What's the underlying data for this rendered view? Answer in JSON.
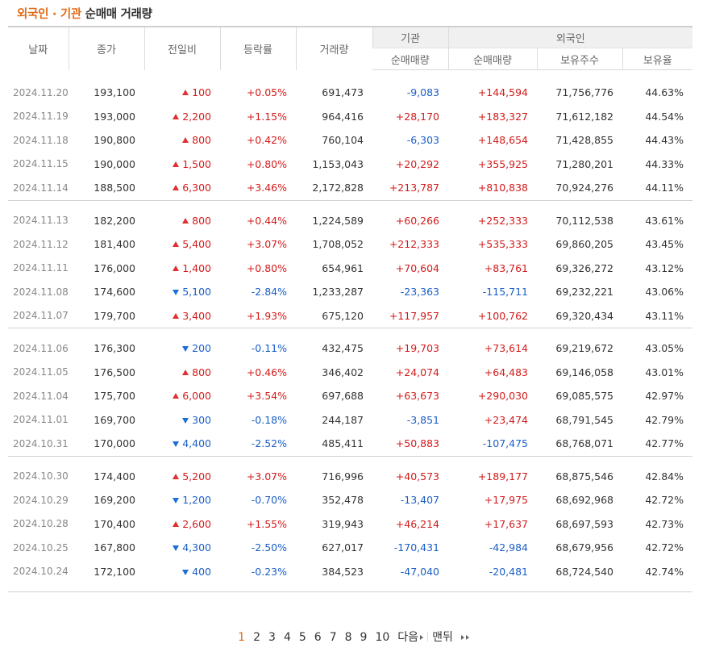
{
  "title": {
    "accent": "외국인 · 기관",
    "rest": " 순매매 거래량"
  },
  "headers": {
    "date": "날짜",
    "close": "종가",
    "change": "전일비",
    "rate": "등락률",
    "volume": "거래량",
    "inst_group": "기관",
    "inst_net": "순매매량",
    "foreign_group": "외국인",
    "foreign_net": "순매매량",
    "foreign_shares": "보유주수",
    "foreign_ratio": "보유율"
  },
  "colors": {
    "accent": "#e06a16",
    "up": "#d31b1b",
    "down": "#1a5ec7"
  },
  "groups": [
    [
      {
        "date": "2024.11.20",
        "close": "193,100",
        "dir": "up",
        "change": "100",
        "rate": "+0.05%",
        "volume": "691,473",
        "inst": "-9,083",
        "foreign": "+144,594",
        "shares": "71,756,776",
        "ratio": "44.63%"
      },
      {
        "date": "2024.11.19",
        "close": "193,000",
        "dir": "up",
        "change": "2,200",
        "rate": "+1.15%",
        "volume": "964,416",
        "inst": "+28,170",
        "foreign": "+183,327",
        "shares": "71,612,182",
        "ratio": "44.54%"
      },
      {
        "date": "2024.11.18",
        "close": "190,800",
        "dir": "up",
        "change": "800",
        "rate": "+0.42%",
        "volume": "760,104",
        "inst": "-6,303",
        "foreign": "+148,654",
        "shares": "71,428,855",
        "ratio": "44.43%"
      },
      {
        "date": "2024.11.15",
        "close": "190,000",
        "dir": "up",
        "change": "1,500",
        "rate": "+0.80%",
        "volume": "1,153,043",
        "inst": "+20,292",
        "foreign": "+355,925",
        "shares": "71,280,201",
        "ratio": "44.33%"
      },
      {
        "date": "2024.11.14",
        "close": "188,500",
        "dir": "up",
        "change": "6,300",
        "rate": "+3.46%",
        "volume": "2,172,828",
        "inst": "+213,787",
        "foreign": "+810,838",
        "shares": "70,924,276",
        "ratio": "44.11%"
      }
    ],
    [
      {
        "date": "2024.11.13",
        "close": "182,200",
        "dir": "up",
        "change": "800",
        "rate": "+0.44%",
        "volume": "1,224,589",
        "inst": "+60,266",
        "foreign": "+252,333",
        "shares": "70,112,538",
        "ratio": "43.61%"
      },
      {
        "date": "2024.11.12",
        "close": "181,400",
        "dir": "up",
        "change": "5,400",
        "rate": "+3.07%",
        "volume": "1,708,052",
        "inst": "+212,333",
        "foreign": "+535,333",
        "shares": "69,860,205",
        "ratio": "43.45%"
      },
      {
        "date": "2024.11.11",
        "close": "176,000",
        "dir": "up",
        "change": "1,400",
        "rate": "+0.80%",
        "volume": "654,961",
        "inst": "+70,604",
        "foreign": "+83,761",
        "shares": "69,326,272",
        "ratio": "43.12%"
      },
      {
        "date": "2024.11.08",
        "close": "174,600",
        "dir": "down",
        "change": "5,100",
        "rate": "-2.84%",
        "volume": "1,233,287",
        "inst": "-23,363",
        "foreign": "-115,711",
        "shares": "69,232,221",
        "ratio": "43.06%"
      },
      {
        "date": "2024.11.07",
        "close": "179,700",
        "dir": "up",
        "change": "3,400",
        "rate": "+1.93%",
        "volume": "675,120",
        "inst": "+117,957",
        "foreign": "+100,762",
        "shares": "69,320,434",
        "ratio": "43.11%"
      }
    ],
    [
      {
        "date": "2024.11.06",
        "close": "176,300",
        "dir": "down",
        "change": "200",
        "rate": "-0.11%",
        "volume": "432,475",
        "inst": "+19,703",
        "foreign": "+73,614",
        "shares": "69,219,672",
        "ratio": "43.05%"
      },
      {
        "date": "2024.11.05",
        "close": "176,500",
        "dir": "up",
        "change": "800",
        "rate": "+0.46%",
        "volume": "346,402",
        "inst": "+24,074",
        "foreign": "+64,483",
        "shares": "69,146,058",
        "ratio": "43.01%"
      },
      {
        "date": "2024.11.04",
        "close": "175,700",
        "dir": "up",
        "change": "6,000",
        "rate": "+3.54%",
        "volume": "697,688",
        "inst": "+63,673",
        "foreign": "+290,030",
        "shares": "69,085,575",
        "ratio": "42.97%"
      },
      {
        "date": "2024.11.01",
        "close": "169,700",
        "dir": "down",
        "change": "300",
        "rate": "-0.18%",
        "volume": "244,187",
        "inst": "-3,851",
        "foreign": "+23,474",
        "shares": "68,791,545",
        "ratio": "42.79%"
      },
      {
        "date": "2024.10.31",
        "close": "170,000",
        "dir": "down",
        "change": "4,400",
        "rate": "-2.52%",
        "volume": "485,411",
        "inst": "+50,883",
        "foreign": "-107,475",
        "shares": "68,768,071",
        "ratio": "42.77%"
      }
    ],
    [
      {
        "date": "2024.10.30",
        "close": "174,400",
        "dir": "up",
        "change": "5,200",
        "rate": "+3.07%",
        "volume": "716,996",
        "inst": "+40,573",
        "foreign": "+189,177",
        "shares": "68,875,546",
        "ratio": "42.84%"
      },
      {
        "date": "2024.10.29",
        "close": "169,200",
        "dir": "down",
        "change": "1,200",
        "rate": "-0.70%",
        "volume": "352,478",
        "inst": "-13,407",
        "foreign": "+17,975",
        "shares": "68,692,968",
        "ratio": "42.72%"
      },
      {
        "date": "2024.10.28",
        "close": "170,400",
        "dir": "up",
        "change": "2,600",
        "rate": "+1.55%",
        "volume": "319,943",
        "inst": "+46,214",
        "foreign": "+17,637",
        "shares": "68,697,593",
        "ratio": "42.73%"
      },
      {
        "date": "2024.10.25",
        "close": "167,800",
        "dir": "down",
        "change": "4,300",
        "rate": "-2.50%",
        "volume": "627,017",
        "inst": "-170,431",
        "foreign": "-42,984",
        "shares": "68,679,956",
        "ratio": "42.72%"
      },
      {
        "date": "2024.10.24",
        "close": "172,100",
        "dir": "down",
        "change": "400",
        "rate": "-0.23%",
        "volume": "384,523",
        "inst": "-47,040",
        "foreign": "-20,481",
        "shares": "68,724,540",
        "ratio": "42.74%"
      }
    ]
  ],
  "pagination": {
    "pages": [
      "1",
      "2",
      "3",
      "4",
      "5",
      "6",
      "7",
      "8",
      "9",
      "10"
    ],
    "current": "1",
    "next_label": "다음",
    "last_label": "맨뒤"
  }
}
